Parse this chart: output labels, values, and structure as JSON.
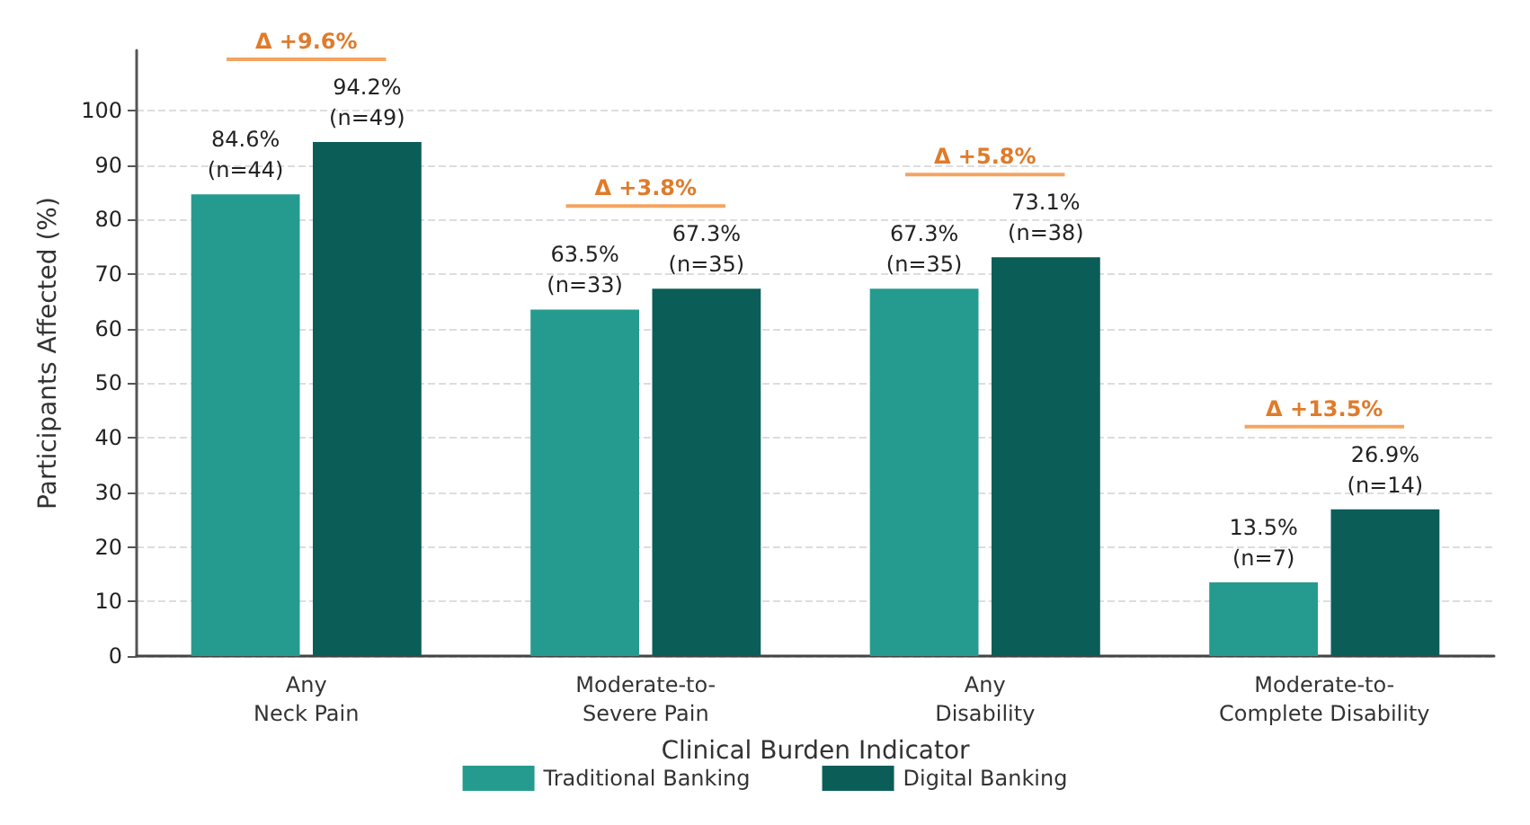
{
  "chart_data": {
    "type": "bar",
    "xlabel": "Clinical Burden Indicator",
    "ylabel": "Participants Affected (%)",
    "categories": [
      "Any\nNeck Pain",
      "Moderate-to-\nSevere Pain",
      "Any\nDisability",
      "Moderate-to-\nComplete Disability"
    ],
    "series": [
      {
        "name": "Traditional Banking",
        "color": "#259b8f",
        "values": [
          84.6,
          63.5,
          67.3,
          13.5
        ],
        "value_labels": [
          "84.6%\n(n=44)",
          "63.5%\n(n=33)",
          "67.3%\n(n=35)",
          "13.5%\n(n=7)"
        ]
      },
      {
        "name": "Digital Banking",
        "color": "#0b5e58",
        "values": [
          94.2,
          67.3,
          73.1,
          26.9
        ],
        "value_labels": [
          "94.2%\n(n=49)",
          "67.3%\n(n=35)",
          "73.1%\n(n=38)",
          "26.9%\n(n=14)"
        ]
      }
    ],
    "ylim": [
      0,
      111
    ],
    "yticks": [
      0,
      10,
      20,
      30,
      40,
      50,
      60,
      70,
      80,
      90,
      100
    ],
    "grid": "y",
    "legend": "bottom",
    "annotations": [
      "Δ +9.6%",
      "Δ +3.8%",
      "Δ +5.8%",
      "Δ +13.5%"
    ]
  }
}
